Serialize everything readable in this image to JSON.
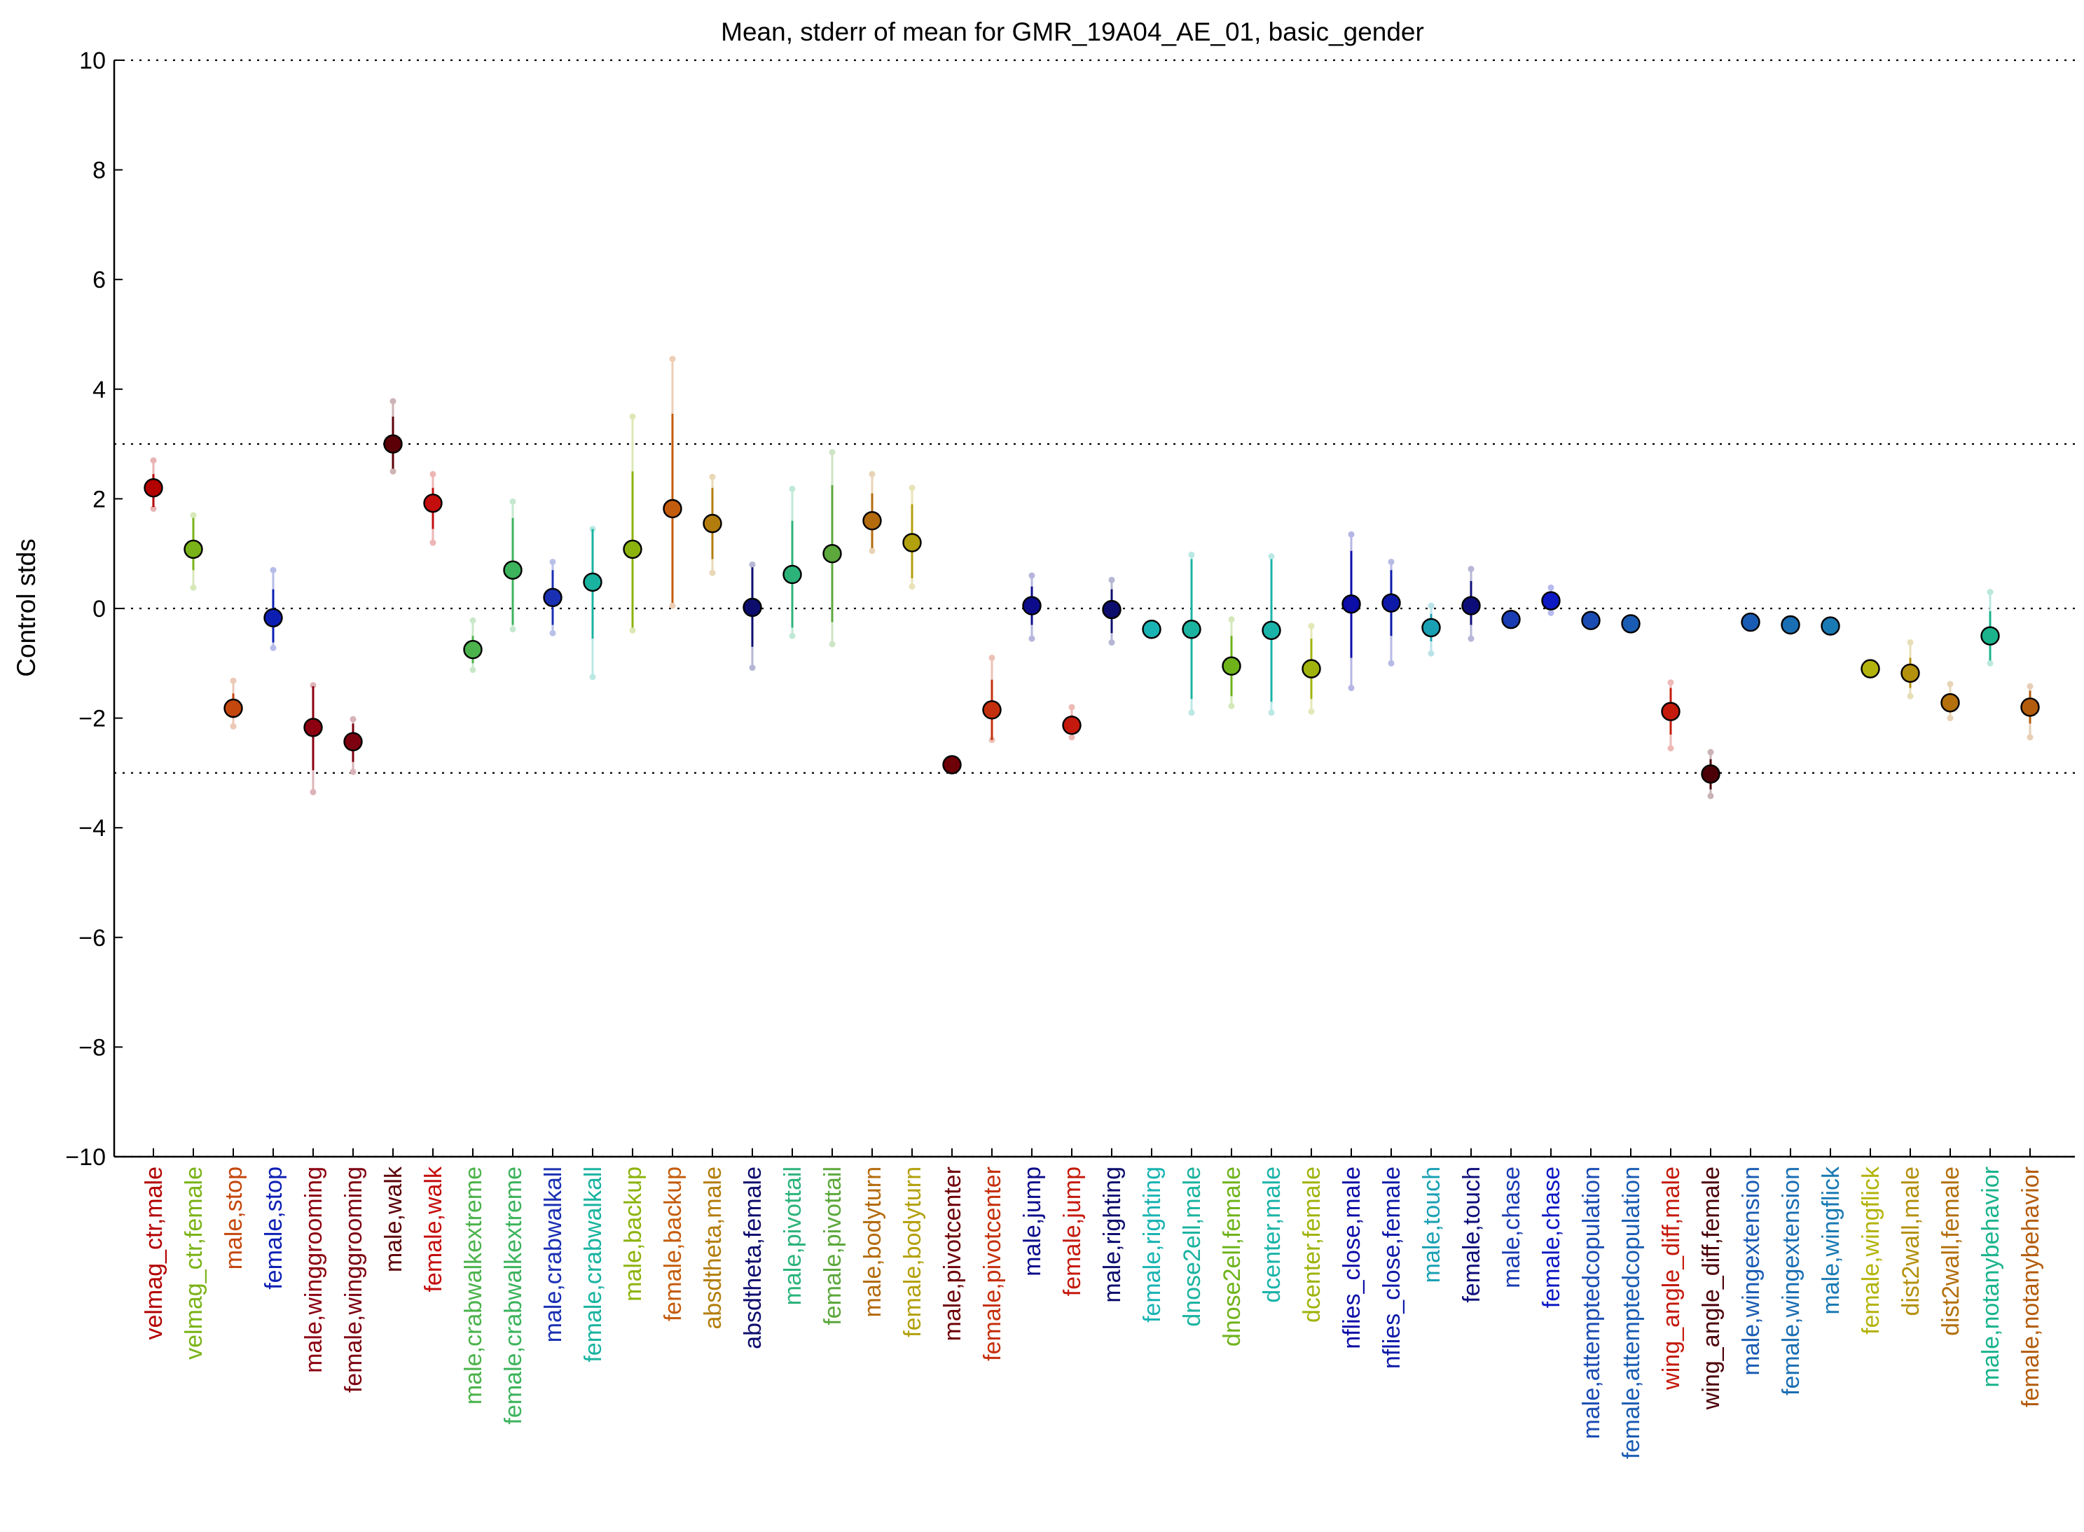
{
  "chart_data": {
    "type": "scatter",
    "title": "Mean, stderr of mean for GMR_19A04_AE_01, basic_gender",
    "ylabel": "Control stds",
    "xlabel": "",
    "ylim": [
      -10,
      10
    ],
    "yticks": [
      -10,
      -8,
      -6,
      -4,
      -2,
      0,
      2,
      4,
      6,
      8,
      10
    ],
    "ytick_labels": [
      "−10",
      "−8",
      "−6",
      "−4",
      "−2",
      "0",
      "2",
      "4",
      "6",
      "8",
      "10"
    ],
    "reference_lines": [
      10,
      3,
      0,
      -3,
      -10
    ],
    "grid": "dotted horizontal reference lines",
    "legend": "none",
    "points": [
      {
        "label": "velmag_ctr,male",
        "mean": 2.2,
        "err_lo": 1.85,
        "err_hi": 2.45,
        "range_lo": 1.82,
        "range_hi": 2.7,
        "color": "#b30000"
      },
      {
        "label": "velmag_ctr,female",
        "mean": 1.08,
        "err_lo": 0.7,
        "err_hi": 1.65,
        "range_lo": 0.38,
        "range_hi": 1.7,
        "color": "#7ab317"
      },
      {
        "label": "male,stop",
        "mean": -1.82,
        "err_lo": -2.0,
        "err_hi": -1.55,
        "range_lo": -2.15,
        "range_hi": -1.32,
        "color": "#c4470d"
      },
      {
        "label": "female,stop",
        "mean": -0.17,
        "err_lo": -0.62,
        "err_hi": 0.35,
        "range_lo": -0.72,
        "range_hi": 0.7,
        "color": "#0d1fb3"
      },
      {
        "label": "male,winggrooming",
        "mean": -2.17,
        "err_lo": -2.95,
        "err_hi": -1.42,
        "range_lo": -3.35,
        "range_hi": -1.4,
        "color": "#8c0011"
      },
      {
        "label": "female,winggrooming",
        "mean": -2.43,
        "err_lo": -2.8,
        "err_hi": -2.1,
        "range_lo": -2.98,
        "range_hi": -2.02,
        "color": "#7d0011"
      },
      {
        "label": "male,walk",
        "mean": 3.0,
        "err_lo": 2.55,
        "err_hi": 3.5,
        "range_lo": 2.5,
        "range_hi": 3.78,
        "color": "#5c0008"
      },
      {
        "label": "female,walk",
        "mean": 1.92,
        "err_lo": 1.45,
        "err_hi": 2.2,
        "range_lo": 1.2,
        "range_hi": 2.45,
        "color": "#c40d0d"
      },
      {
        "label": "male,crabwalkextreme",
        "mean": -0.75,
        "err_lo": -1.0,
        "err_hi": -0.5,
        "range_lo": -1.12,
        "range_hi": -0.22,
        "color": "#4cb34c"
      },
      {
        "label": "female,crabwalkextreme",
        "mean": 0.7,
        "err_lo": -0.3,
        "err_hi": 1.65,
        "range_lo": -0.38,
        "range_hi": 1.95,
        "color": "#3cb35c"
      },
      {
        "label": "male,crabwalkall",
        "mean": 0.2,
        "err_lo": -0.3,
        "err_hi": 0.7,
        "range_lo": -0.45,
        "range_hi": 0.85,
        "color": "#1a30b3"
      },
      {
        "label": "female,crabwalkall",
        "mean": 0.48,
        "err_lo": -0.55,
        "err_hi": 1.45,
        "range_lo": -1.25,
        "range_hi": 1.45,
        "color": "#1ab3a0"
      },
      {
        "label": "male,backup",
        "mean": 1.08,
        "err_lo": -0.35,
        "err_hi": 2.5,
        "range_lo": -0.4,
        "range_hi": 3.5,
        "color": "#8cb30d"
      },
      {
        "label": "female,backup",
        "mean": 1.82,
        "err_lo": 0.1,
        "err_hi": 3.55,
        "range_lo": 0.05,
        "range_hi": 4.55,
        "color": "#c45c0d"
      },
      {
        "label": "absdtheta,male",
        "mean": 1.55,
        "err_lo": 0.9,
        "err_hi": 2.2,
        "range_lo": 0.65,
        "range_hi": 2.4,
        "color": "#b37d0d"
      },
      {
        "label": "absdtheta,female",
        "mean": 0.02,
        "err_lo": -0.7,
        "err_hi": 0.75,
        "range_lo": -1.08,
        "range_hi": 0.8,
        "color": "#0d0d6e"
      },
      {
        "label": "male,pivottail",
        "mean": 0.62,
        "err_lo": -0.35,
        "err_hi": 1.6,
        "range_lo": -0.5,
        "range_hi": 2.18,
        "color": "#2cb37a"
      },
      {
        "label": "female,pivottail",
        "mean": 1.0,
        "err_lo": -0.25,
        "err_hi": 2.25,
        "range_lo": -0.65,
        "range_hi": 2.85,
        "color": "#5ca83c"
      },
      {
        "label": "male,bodyturn",
        "mean": 1.6,
        "err_lo": 1.1,
        "err_hi": 2.1,
        "range_lo": 1.05,
        "range_hi": 2.45,
        "color": "#b36b0d"
      },
      {
        "label": "female,bodyturn",
        "mean": 1.2,
        "err_lo": 0.55,
        "err_hi": 1.9,
        "range_lo": 0.4,
        "range_hi": 2.2,
        "color": "#b3a00d"
      },
      {
        "label": "male,pivotcenter",
        "mean": -2.85,
        "err_lo": -2.95,
        "err_hi": -2.75,
        "range_lo": -2.95,
        "range_hi": -2.75,
        "color": "#6e0008"
      },
      {
        "label": "female,pivotcenter",
        "mean": -1.85,
        "err_lo": -2.4,
        "err_hi": -1.3,
        "range_lo": -2.4,
        "range_hi": -0.9,
        "color": "#c4300d"
      },
      {
        "label": "male,jump",
        "mean": 0.05,
        "err_lo": -0.3,
        "err_hi": 0.4,
        "range_lo": -0.55,
        "range_hi": 0.6,
        "color": "#0d0d8c"
      },
      {
        "label": "female,jump",
        "mean": -2.13,
        "err_lo": -2.3,
        "err_hi": -1.95,
        "range_lo": -2.35,
        "range_hi": -1.8,
        "color": "#c41a0d"
      },
      {
        "label": "male,righting",
        "mean": -0.02,
        "err_lo": -0.45,
        "err_hi": 0.35,
        "range_lo": -0.62,
        "range_hi": 0.52,
        "color": "#0d0d6e"
      },
      {
        "label": "female,righting",
        "mean": -0.38,
        "err_lo": -0.38,
        "err_hi": -0.38,
        "range_lo": -0.38,
        "range_hi": -0.38,
        "color": "#1ab3b3"
      },
      {
        "label": "dnose2ell,male",
        "mean": -0.38,
        "err_lo": -1.65,
        "err_hi": 0.9,
        "range_lo": -1.9,
        "range_hi": 0.98,
        "color": "#1ab3a0"
      },
      {
        "label": "dnose2ell,female",
        "mean": -1.05,
        "err_lo": -1.6,
        "err_hi": -0.5,
        "range_lo": -1.78,
        "range_hi": -0.2,
        "color": "#6eb31a"
      },
      {
        "label": "dcenter,male",
        "mean": -0.4,
        "err_lo": -1.7,
        "err_hi": 0.9,
        "range_lo": -1.9,
        "range_hi": 0.95,
        "color": "#1ab3a8"
      },
      {
        "label": "dcenter,female",
        "mean": -1.1,
        "err_lo": -1.65,
        "err_hi": -0.55,
        "range_lo": -1.88,
        "range_hi": -0.32,
        "color": "#a0b30d"
      },
      {
        "label": "nflies_close,male",
        "mean": 0.08,
        "err_lo": -0.9,
        "err_hi": 1.05,
        "range_lo": -1.45,
        "range_hi": 1.35,
        "color": "#0d0da8"
      },
      {
        "label": "nflies_close,female",
        "mean": 0.1,
        "err_lo": -0.5,
        "err_hi": 0.7,
        "range_lo": -1.0,
        "range_hi": 0.85,
        "color": "#0d1aa8"
      },
      {
        "label": "male,touch",
        "mean": -0.35,
        "err_lo": -0.6,
        "err_hi": -0.1,
        "range_lo": -0.82,
        "range_hi": 0.05,
        "color": "#1aa0b3"
      },
      {
        "label": "female,touch",
        "mean": 0.05,
        "err_lo": -0.3,
        "err_hi": 0.5,
        "range_lo": -0.55,
        "range_hi": 0.72,
        "color": "#0d0d7a"
      },
      {
        "label": "male,chase",
        "mean": -0.2,
        "err_lo": -0.2,
        "err_hi": -0.2,
        "range_lo": -0.2,
        "range_hi": -0.2,
        "color": "#1a3cb3"
      },
      {
        "label": "female,chase",
        "mean": 0.14,
        "err_lo": 0.0,
        "err_hi": 0.28,
        "range_lo": -0.08,
        "range_hi": 0.38,
        "color": "#0d1ac4"
      },
      {
        "label": "male,attemptedcopulation",
        "mean": -0.22,
        "err_lo": -0.22,
        "err_hi": -0.22,
        "range_lo": -0.22,
        "range_hi": -0.22,
        "color": "#1a4cb3"
      },
      {
        "label": "female,attemptedcopulation",
        "mean": -0.28,
        "err_lo": -0.28,
        "err_hi": -0.28,
        "range_lo": -0.28,
        "range_hi": -0.28,
        "color": "#1a5cb3"
      },
      {
        "label": "wing_angle_diff,male",
        "mean": -1.88,
        "err_lo": -2.3,
        "err_hi": -1.45,
        "range_lo": -2.55,
        "range_hi": -1.35,
        "color": "#c41a0d"
      },
      {
        "label": "wing_angle_diff,female",
        "mean": -3.02,
        "err_lo": -3.3,
        "err_hi": -2.75,
        "range_lo": -3.42,
        "range_hi": -2.62,
        "color": "#4c0008"
      },
      {
        "label": "male,wingextension",
        "mean": -0.25,
        "err_lo": -0.25,
        "err_hi": -0.25,
        "range_lo": -0.25,
        "range_hi": -0.25,
        "color": "#1a5cb3"
      },
      {
        "label": "female,wingextension",
        "mean": -0.3,
        "err_lo": -0.3,
        "err_hi": -0.3,
        "range_lo": -0.3,
        "range_hi": -0.3,
        "color": "#1a6eb3"
      },
      {
        "label": "male,wingflick",
        "mean": -0.32,
        "err_lo": -0.32,
        "err_hi": -0.32,
        "range_lo": -0.32,
        "range_hi": -0.32,
        "color": "#1a7ab3"
      },
      {
        "label": "female,wingflick",
        "mean": -1.1,
        "err_lo": -1.1,
        "err_hi": -1.1,
        "range_lo": -1.1,
        "range_hi": -1.1,
        "color": "#b3b30d"
      },
      {
        "label": "dist2wall,male",
        "mean": -1.18,
        "err_lo": -1.45,
        "err_hi": -0.9,
        "range_lo": -1.6,
        "range_hi": -0.62,
        "color": "#b3900d"
      },
      {
        "label": "dist2wall,female",
        "mean": -1.72,
        "err_lo": -1.9,
        "err_hi": -1.55,
        "range_lo": -2.0,
        "range_hi": -1.38,
        "color": "#b3700d"
      },
      {
        "label": "male,notanybehavior",
        "mean": -0.5,
        "err_lo": -0.95,
        "err_hi": -0.05,
        "range_lo": -1.0,
        "range_hi": 0.3,
        "color": "#1ab38c"
      },
      {
        "label": "female,notanybehavior",
        "mean": -1.8,
        "err_lo": -2.1,
        "err_hi": -1.5,
        "range_lo": -2.35,
        "range_hi": -1.42,
        "color": "#b35c0d"
      }
    ]
  }
}
